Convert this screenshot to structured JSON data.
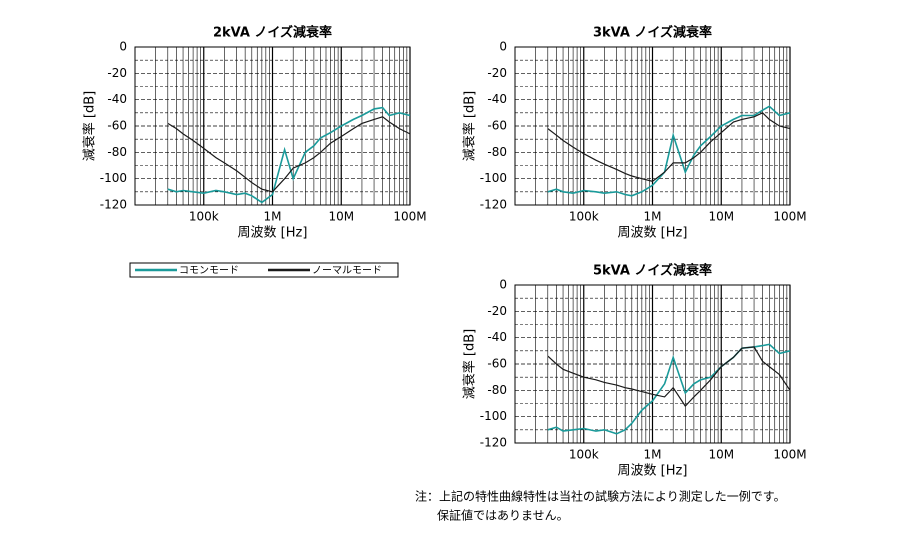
{
  "chart_data": [
    {
      "type": "line",
      "title": "2kVA ノイズ減衰率",
      "xlabel": "周波数 [Hz]",
      "ylabel": "減衰率 [dB]",
      "xscale": "log",
      "grid": true,
      "legend": true,
      "x": [
        30000,
        40000,
        50000,
        70000,
        100000,
        150000,
        200000,
        300000,
        400000,
        500000,
        700000,
        1000000,
        1500000,
        2000000,
        3000000,
        4000000,
        5000000,
        7000000,
        10000000,
        15000000,
        20000000,
        30000000,
        40000000,
        50000000,
        70000000,
        100000000
      ],
      "xlim": [
        10000,
        100000000
      ],
      "xticks": [
        {
          "value": 100000,
          "label": "100k"
        },
        {
          "value": 1000000,
          "label": "1M"
        },
        {
          "value": 10000000,
          "label": "10M"
        },
        {
          "value": 100000000,
          "label": "100M"
        }
      ],
      "xminorticks": [
        20000,
        30000,
        40000,
        50000,
        60000,
        70000,
        80000,
        90000,
        200000,
        300000,
        400000,
        500000,
        600000,
        700000,
        800000,
        900000,
        2000000,
        3000000,
        4000000,
        5000000,
        6000000,
        7000000,
        8000000,
        9000000,
        20000000,
        30000000,
        40000000,
        50000000,
        60000000,
        70000000,
        80000000,
        90000000
      ],
      "ylim": [
        -120,
        0
      ],
      "yticks": [
        0,
        -20,
        -40,
        -60,
        -80,
        -100,
        -120
      ],
      "yminorticks": [
        -10,
        -30,
        -50,
        -70,
        -90,
        -110
      ],
      "series": [
        {
          "name": "コモンモード",
          "color": "#1a9a9a",
          "values": [
            -108,
            -110,
            -109,
            -110,
            -111,
            -109,
            -110,
            -112,
            -111,
            -113,
            -118,
            -112,
            -78,
            -100,
            -80,
            -75,
            -69,
            -65,
            -60,
            -55,
            -52,
            -47,
            -46,
            -52,
            -50,
            -52
          ]
        },
        {
          "name": "ノーマルモード",
          "color": "#1a1a1a",
          "values": [
            -58,
            -62,
            -66,
            -71,
            -77,
            -84,
            -88,
            -94,
            -99,
            -103,
            -108,
            -110,
            -100,
            -92,
            -88,
            -84,
            -80,
            -73,
            -68,
            -62,
            -58,
            -55,
            -53,
            -57,
            -62,
            -66
          ]
        }
      ]
    },
    {
      "type": "line",
      "title": "3kVA ノイズ減衰率",
      "xlabel": "周波数 [Hz]",
      "ylabel": "減衰率 [dB]",
      "xscale": "log",
      "grid": true,
      "legend": false,
      "x": [
        30000,
        40000,
        50000,
        70000,
        100000,
        150000,
        200000,
        300000,
        400000,
        500000,
        700000,
        1000000,
        1500000,
        2000000,
        3000000,
        4000000,
        5000000,
        7000000,
        10000000,
        15000000,
        20000000,
        30000000,
        40000000,
        50000000,
        70000000,
        100000000
      ],
      "xlim": [
        10000,
        100000000
      ],
      "xticks": [
        {
          "value": 100000,
          "label": "100k"
        },
        {
          "value": 1000000,
          "label": "1M"
        },
        {
          "value": 10000000,
          "label": "10M"
        },
        {
          "value": 100000000,
          "label": "100M"
        }
      ],
      "xminorticks": [
        20000,
        30000,
        40000,
        50000,
        60000,
        70000,
        80000,
        90000,
        200000,
        300000,
        400000,
        500000,
        600000,
        700000,
        800000,
        900000,
        2000000,
        3000000,
        4000000,
        5000000,
        6000000,
        7000000,
        8000000,
        9000000,
        20000000,
        30000000,
        40000000,
        50000000,
        60000000,
        70000000,
        80000000,
        90000000
      ],
      "ylim": [
        -120,
        0
      ],
      "yticks": [
        0,
        -20,
        -40,
        -60,
        -80,
        -100,
        -120
      ],
      "yminorticks": [
        -10,
        -30,
        -50,
        -70,
        -90,
        -110
      ],
      "series": [
        {
          "name": "コモンモード",
          "color": "#1a9a9a",
          "values": [
            -110,
            -108,
            -110,
            -111,
            -109,
            -110,
            -111,
            -110,
            -112,
            -113,
            -110,
            -105,
            -95,
            -67,
            -95,
            -82,
            -75,
            -68,
            -60,
            -55,
            -52,
            -52,
            -48,
            -45,
            -52,
            -50
          ]
        },
        {
          "name": "ノーマルモード",
          "color": "#1a1a1a",
          "values": [
            -62,
            -67,
            -71,
            -76,
            -81,
            -86,
            -89,
            -93,
            -96,
            -98,
            -100,
            -102,
            -95,
            -88,
            -88,
            -84,
            -80,
            -72,
            -65,
            -57,
            -55,
            -53,
            -50,
            -55,
            -60,
            -62
          ]
        }
      ]
    },
    {
      "type": "line",
      "title": "5kVA ノイズ減衰率",
      "xlabel": "周波数 [Hz]",
      "ylabel": "減衰率 [dB]",
      "xscale": "log",
      "grid": true,
      "legend": false,
      "x": [
        30000,
        40000,
        50000,
        70000,
        100000,
        150000,
        200000,
        300000,
        400000,
        500000,
        700000,
        1000000,
        1500000,
        2000000,
        3000000,
        4000000,
        5000000,
        7000000,
        10000000,
        15000000,
        20000000,
        30000000,
        40000000,
        50000000,
        70000000,
        100000000
      ],
      "xlim": [
        10000,
        100000000
      ],
      "xticks": [
        {
          "value": 100000,
          "label": "100k"
        },
        {
          "value": 1000000,
          "label": "1M"
        },
        {
          "value": 10000000,
          "label": "10M"
        },
        {
          "value": 100000000,
          "label": "100M"
        }
      ],
      "xminorticks": [
        20000,
        30000,
        40000,
        50000,
        60000,
        70000,
        80000,
        90000,
        200000,
        300000,
        400000,
        500000,
        600000,
        700000,
        800000,
        900000,
        2000000,
        3000000,
        4000000,
        5000000,
        6000000,
        7000000,
        8000000,
        9000000,
        20000000,
        30000000,
        40000000,
        50000000,
        60000000,
        70000000,
        80000000,
        90000000
      ],
      "ylim": [
        -120,
        0
      ],
      "yticks": [
        0,
        -20,
        -40,
        -60,
        -80,
        -100,
        -120
      ],
      "yminorticks": [
        -10,
        -30,
        -50,
        -70,
        -90,
        -110
      ],
      "series": [
        {
          "name": "コモンモード",
          "color": "#1a9a9a",
          "values": [
            -110,
            -108,
            -111,
            -110,
            -109,
            -111,
            -110,
            -113,
            -110,
            -105,
            -95,
            -88,
            -75,
            -55,
            -82,
            -75,
            -72,
            -70,
            -62,
            -55,
            -48,
            -47,
            -46,
            -45,
            -52,
            -50
          ]
        },
        {
          "name": "ノーマルモード",
          "color": "#1a1a1a",
          "values": [
            -54,
            -60,
            -64,
            -67,
            -70,
            -72,
            -74,
            -76,
            -78,
            -79,
            -81,
            -83,
            -85,
            -78,
            -92,
            -85,
            -80,
            -72,
            -62,
            -55,
            -48,
            -47,
            -58,
            -62,
            -68,
            -80
          ]
        }
      ]
    }
  ],
  "note": [
    "注：上記の特性曲線特性は当社の試験方法により測定した一例です。",
    "保証値ではありません。"
  ]
}
